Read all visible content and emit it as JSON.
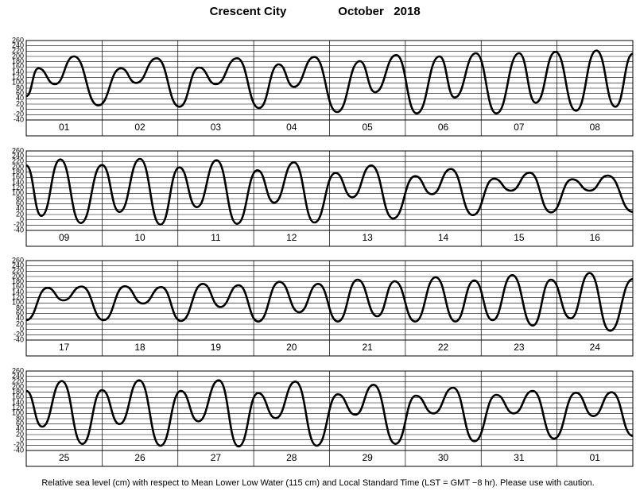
{
  "header": {
    "location": "Crescent City",
    "period": "October   2018"
  },
  "footer": "Relative sea level (cm) with respect to Mean Lower Low Water (115 cm) and Local Standard Time (LST = GMT −8 hr). Please use with caution.",
  "chart_data": [
    {
      "type": "line",
      "categories": [
        "01",
        "02",
        "03",
        "04",
        "05",
        "06",
        "07",
        "08"
      ],
      "xlim": [
        0,
        8
      ],
      "xticks": [
        0,
        1,
        2,
        3,
        4,
        5,
        6,
        7,
        8
      ],
      "ylim": [
        -40,
        260
      ],
      "yticks": [
        -40,
        -20,
        0,
        20,
        40,
        60,
        80,
        100,
        120,
        140,
        160,
        180,
        200,
        220,
        240,
        260
      ],
      "grid": true,
      "x": [
        0,
        0.16,
        0.38,
        0.63,
        0.95,
        1.25,
        1.45,
        1.72,
        2.02,
        2.28,
        2.5,
        2.78,
        3.07,
        3.33,
        3.53,
        3.8,
        4.1,
        4.4,
        4.6,
        4.88,
        5.15,
        5.45,
        5.65,
        5.93,
        6.2,
        6.5,
        6.72,
        6.98,
        7.25,
        7.52,
        7.77,
        8
      ],
      "series": [
        {
          "color": "#000000",
          "values": [
            50,
            155,
            95,
            200,
            15,
            155,
            100,
            193,
            10,
            158,
            95,
            193,
            5,
            170,
            85,
            198,
            -10,
            182,
            65,
            205,
            -15,
            200,
            45,
            212,
            -15,
            212,
            25,
            217,
            -5,
            222,
            10,
            210
          ]
        }
      ]
    },
    {
      "type": "line",
      "categories": [
        "09",
        "10",
        "11",
        "12",
        "13",
        "14",
        "15",
        "16"
      ],
      "xlim": [
        0,
        8
      ],
      "xticks": [
        0,
        1,
        2,
        3,
        4,
        5,
        6,
        7,
        8
      ],
      "ylim": [
        -40,
        260
      ],
      "yticks": [
        -40,
        -20,
        0,
        20,
        40,
        60,
        80,
        100,
        120,
        140,
        160,
        180,
        200,
        220,
        240,
        260
      ],
      "grid": true,
      "x": [
        0,
        0.2,
        0.45,
        0.72,
        1.0,
        1.23,
        1.5,
        1.77,
        2.02,
        2.25,
        2.51,
        2.78,
        3.05,
        3.27,
        3.53,
        3.8,
        4.08,
        4.3,
        4.55,
        4.84,
        5.13,
        5.35,
        5.6,
        5.89,
        6.17,
        6.39,
        6.64,
        6.92,
        7.2,
        7.43,
        7.67,
        8
      ],
      "series": [
        {
          "color": "#000000",
          "values": [
            205,
            15,
            228,
            -12,
            207,
            30,
            230,
            -18,
            198,
            48,
            225,
            -15,
            187,
            65,
            217,
            -10,
            177,
            85,
            205,
            5,
            165,
            97,
            192,
            18,
            155,
            110,
            178,
            28,
            153,
            110,
            167,
            30
          ]
        }
      ]
    },
    {
      "type": "line",
      "categories": [
        "17",
        "18",
        "19",
        "20",
        "21",
        "22",
        "23",
        "24"
      ],
      "xlim": [
        0,
        8
      ],
      "xticks": [
        0,
        1,
        2,
        3,
        4,
        5,
        6,
        7,
        8
      ],
      "ylim": [
        -40,
        260
      ],
      "yticks": [
        -40,
        -20,
        0,
        20,
        40,
        60,
        80,
        100,
        120,
        140,
        160,
        180,
        200,
        220,
        240,
        260
      ],
      "grid": true,
      "x": [
        0,
        0.28,
        0.49,
        0.73,
        1.02,
        1.3,
        1.54,
        1.78,
        2.04,
        2.33,
        2.56,
        2.8,
        3.06,
        3.34,
        3.6,
        3.85,
        4.11,
        4.37,
        4.63,
        4.86,
        5.13,
        5.4,
        5.66,
        5.91,
        6.15,
        6.41,
        6.68,
        6.92,
        7.18,
        7.43,
        7.7,
        8
      ],
      "series": [
        {
          "color": "#000000",
          "values": [
            35,
            157,
            110,
            162,
            35,
            163,
            98,
            160,
            32,
            172,
            85,
            167,
            30,
            180,
            65,
            172,
            30,
            188,
            50,
            182,
            30,
            197,
            30,
            185,
            35,
            205,
            15,
            188,
            42,
            213,
            -5,
            190
          ]
        }
      ]
    },
    {
      "type": "line",
      "categories": [
        "25",
        "26",
        "27",
        "28",
        "29",
        "30",
        "31",
        "01"
      ],
      "xlim": [
        0,
        8
      ],
      "xticks": [
        0,
        1,
        2,
        3,
        4,
        5,
        6,
        7,
        8
      ],
      "ylim": [
        -40,
        260
      ],
      "yticks": [
        -40,
        -20,
        0,
        20,
        40,
        60,
        80,
        100,
        120,
        140,
        160,
        180,
        200,
        220,
        240,
        260
      ],
      "grid": true,
      "x": [
        0,
        0.21,
        0.47,
        0.74,
        1.0,
        1.23,
        1.49,
        1.77,
        2.04,
        2.27,
        2.54,
        2.8,
        3.06,
        3.29,
        3.55,
        3.83,
        4.11,
        4.34,
        4.58,
        4.87,
        5.14,
        5.37,
        5.63,
        5.91,
        6.2,
        6.43,
        6.68,
        6.96,
        7.25,
        7.48,
        7.72,
        8
      ],
      "series": [
        {
          "color": "#000000",
          "values": [
            185,
            50,
            222,
            -15,
            188,
            60,
            225,
            -22,
            185,
            70,
            225,
            -25,
            177,
            82,
            220,
            -22,
            172,
            95,
            208,
            -15,
            167,
            100,
            197,
            -5,
            170,
            100,
            185,
            5,
            178,
            90,
            180,
            15
          ]
        }
      ]
    }
  ]
}
